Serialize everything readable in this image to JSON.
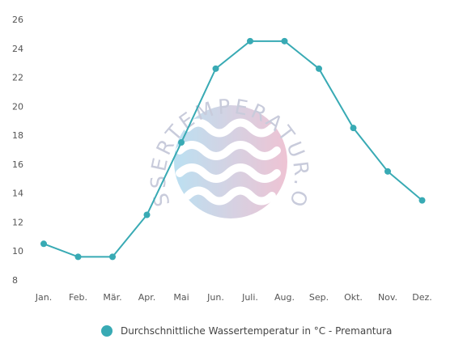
{
  "chart_data": {
    "type": "line",
    "categories": [
      "Jan.",
      "Feb.",
      "Mär.",
      "Apr.",
      "Mai",
      "Jun.",
      "Juli.",
      "Aug.",
      "Sep.",
      "Okt.",
      "Nov.",
      "Dez."
    ],
    "series": [
      {
        "name": "Durchschnittliche Wassertemperatur in °C - Premantura",
        "values": [
          10.5,
          9.6,
          9.6,
          12.5,
          17.5,
          22.6,
          24.5,
          24.5,
          22.6,
          18.5,
          15.5,
          13.5
        ]
      }
    ],
    "yticks": [
      8,
      10,
      12,
      14,
      16,
      18,
      20,
      22,
      24,
      26
    ],
    "ylim": [
      8,
      26
    ],
    "grid": false,
    "legend_position": "bottom",
    "series_color": "#38aab4"
  },
  "watermark": {
    "text": "WASSERTEMPERATUR.ORG"
  }
}
